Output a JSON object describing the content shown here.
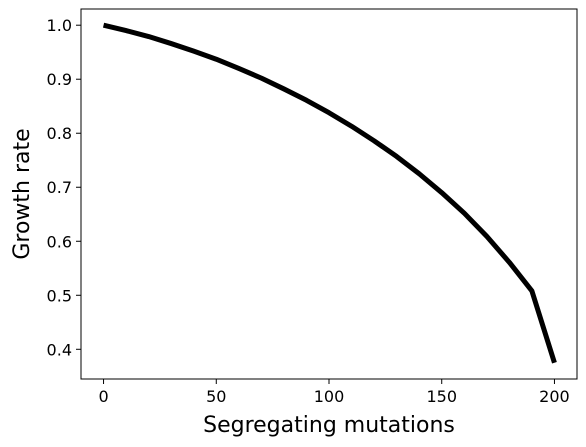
{
  "chart_data": {
    "type": "line",
    "title": "",
    "xlabel": "Segregating mutations",
    "ylabel": "Growth rate",
    "xlim": [
      -10,
      210
    ],
    "ylim": [
      0.345,
      1.03
    ],
    "x_ticks": [
      0,
      50,
      100,
      150,
      200
    ],
    "x_tick_labels": [
      "0",
      "50",
      "100",
      "150",
      "200"
    ],
    "y_ticks": [
      0.4,
      0.5,
      0.6,
      0.7,
      0.8,
      0.9,
      1.0
    ],
    "y_tick_labels": [
      "0.4",
      "0.5",
      "0.6",
      "0.7",
      "0.8",
      "0.9",
      "1.0"
    ],
    "grid": false,
    "legend": "none",
    "series": [
      {
        "color": "#000000",
        "x": [
          0,
          10,
          20,
          30,
          40,
          50,
          60,
          70,
          80,
          90,
          100,
          110,
          120,
          130,
          140,
          150,
          160,
          170,
          180,
          190,
          200
        ],
        "y": [
          1.0,
          0.99,
          0.979,
          0.966,
          0.952,
          0.937,
          0.92,
          0.902,
          0.882,
          0.861,
          0.838,
          0.813,
          0.786,
          0.757,
          0.725,
          0.69,
          0.652,
          0.609,
          0.561,
          0.508,
          0.375
        ]
      }
    ]
  }
}
